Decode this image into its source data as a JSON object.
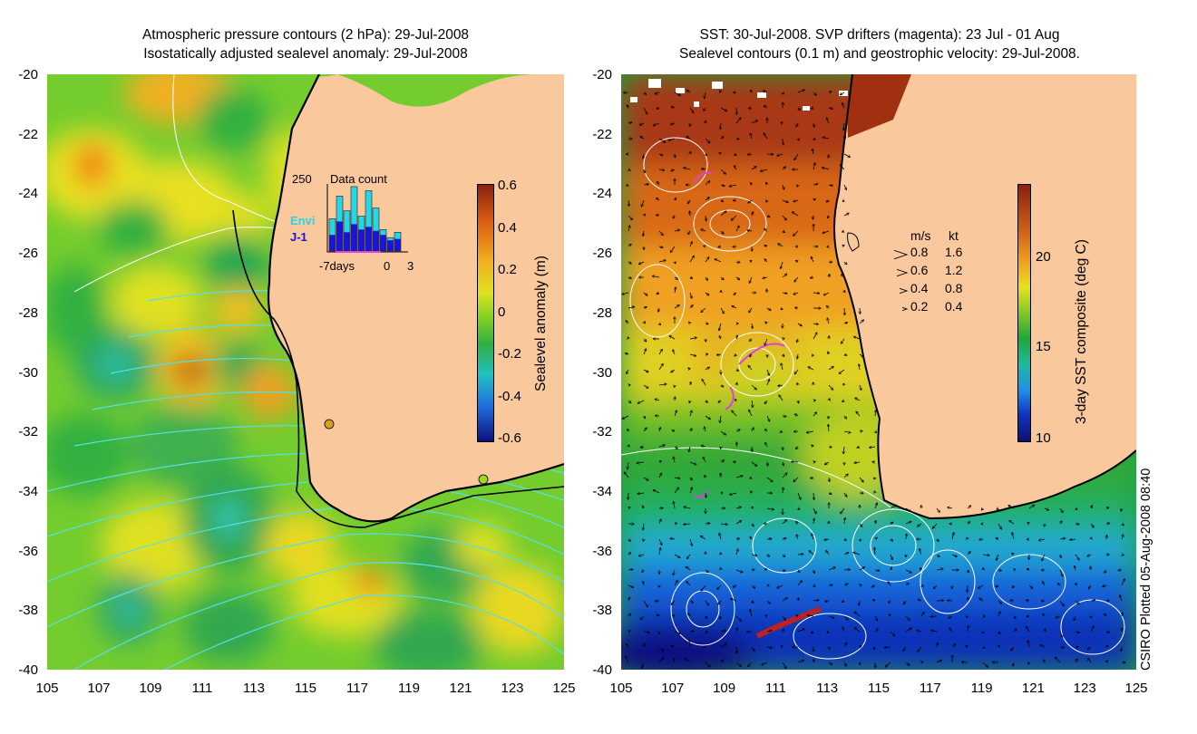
{
  "left_panel": {
    "title_line1": "Atmospheric pressure contours (2 hPa): 29-Jul-2008",
    "title_line2": "Isostatically adjusted sealevel anomaly: 29-Jul-2008",
    "y_ticks": [
      "-20",
      "-22",
      "-24",
      "-26",
      "-28",
      "-30",
      "-32",
      "-34",
      "-36",
      "-38",
      "-40"
    ],
    "x_ticks": [
      "105",
      "107",
      "109",
      "111",
      "113",
      "115",
      "117",
      "119",
      "121",
      "123",
      "125"
    ],
    "colorbar": {
      "label": "Sealevel anomaly (m)",
      "ticks": [
        "0.6",
        "0.4",
        "0.2",
        "0",
        "-0.2",
        "-0.4",
        "-0.6"
      ]
    },
    "inset": {
      "title": "Data count",
      "max_label": "250",
      "envi_label": "Envi",
      "j1_label": "J-1",
      "x_left": "-7days",
      "x_mid": "0",
      "x_right": "3",
      "envi_color": "#22d8e8",
      "j1_color": "#1515e0",
      "envi_counts": [
        120,
        205,
        150,
        240,
        130,
        225,
        160,
        80,
        50,
        70
      ],
      "j1_counts": [
        60,
        110,
        70,
        100,
        80,
        90,
        75,
        60,
        40,
        45
      ]
    }
  },
  "right_panel": {
    "title_line1": "SST: 30-Jul-2008. SVP drifters (magenta): 23 Jul - 01 Aug",
    "title_line2": "Sealevel contours (0.1 m) and geostrophic velocity: 29-Jul-2008.",
    "y_ticks": [
      "-20",
      "-22",
      "-24",
      "-26",
      "-28",
      "-30",
      "-32",
      "-34",
      "-36",
      "-38",
      "-40"
    ],
    "x_ticks": [
      "105",
      "107",
      "109",
      "111",
      "113",
      "115",
      "117",
      "119",
      "121",
      "123",
      "125"
    ],
    "colorbar": {
      "label": "3-day SST composite (deg C)",
      "ticks": [
        "20",
        "15",
        "10"
      ]
    },
    "velocity_legend": {
      "header_ms": "m/s",
      "header_kt": "kt",
      "rows": [
        {
          "ms": "0.8",
          "kt": "1.6"
        },
        {
          "ms": "0.6",
          "kt": "1.2"
        },
        {
          "ms": "0.4",
          "kt": "0.8"
        },
        {
          "ms": "0.2",
          "kt": "0.4"
        }
      ]
    }
  },
  "credit": "CSIRO Plotted 05-Aug-2008 08:40",
  "colors": {
    "land": "#f9c89d",
    "coast": "#000000",
    "pressure_contour": "#55e0e8",
    "drifter": "#e040e0"
  }
}
